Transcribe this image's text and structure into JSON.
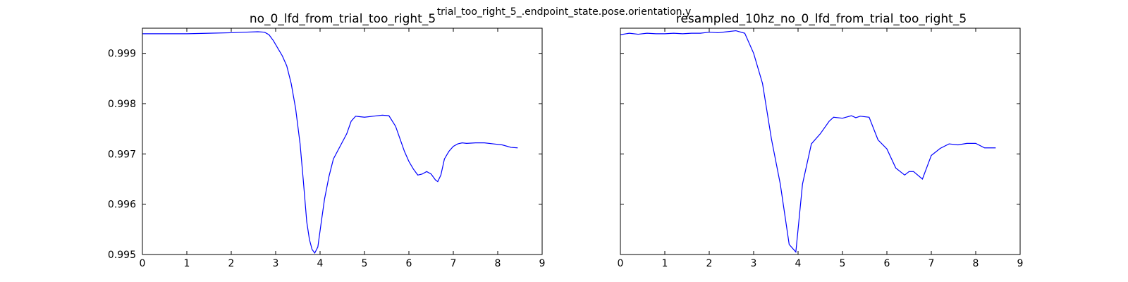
{
  "figure": {
    "suptitle": "trial_too_right_5_.endpoint_state.pose.orientation.y"
  },
  "chart_data": [
    {
      "type": "line",
      "title": "no_0_lfd_from_trial_too_right_5",
      "xlabel": "",
      "ylabel": "",
      "xlim": [
        0,
        9
      ],
      "ylim": [
        0.995,
        0.9995
      ],
      "xticks": [
        0,
        1,
        2,
        3,
        4,
        5,
        6,
        7,
        8,
        9
      ],
      "yticks": [
        0.995,
        0.996,
        0.997,
        0.998,
        0.999
      ],
      "ytick_labels": [
        "0.995",
        "0.996",
        "0.997",
        "0.998",
        "0.999"
      ],
      "show_y_tick_labels": true,
      "grid": false,
      "series": [
        {
          "color": "#0000ff",
          "x": [
            0,
            0.5,
            1.0,
            1.5,
            2.0,
            2.3,
            2.6,
            2.75,
            2.85,
            2.95,
            3.05,
            3.15,
            3.25,
            3.35,
            3.45,
            3.55,
            3.62,
            3.7,
            3.76,
            3.82,
            3.88,
            3.95,
            4.02,
            4.1,
            4.2,
            4.3,
            4.45,
            4.6,
            4.7,
            4.8,
            5.0,
            5.2,
            5.4,
            5.55,
            5.7,
            5.8,
            5.9,
            6.0,
            6.1,
            6.2,
            6.3,
            6.4,
            6.5,
            6.6,
            6.65,
            6.72,
            6.8,
            6.9,
            7.0,
            7.1,
            7.2,
            7.3,
            7.5,
            7.7,
            7.9,
            8.1,
            8.3,
            8.45
          ],
          "y": [
            0.99939,
            0.99939,
            0.99939,
            0.9994,
            0.99941,
            0.99942,
            0.99943,
            0.99942,
            0.99937,
            0.99925,
            0.9991,
            0.99895,
            0.99875,
            0.9984,
            0.9979,
            0.9972,
            0.9965,
            0.99565,
            0.9953,
            0.9951,
            0.99503,
            0.99515,
            0.9956,
            0.9961,
            0.99655,
            0.9969,
            0.99715,
            0.9974,
            0.99765,
            0.99775,
            0.99773,
            0.99775,
            0.99777,
            0.99776,
            0.99755,
            0.9973,
            0.99705,
            0.99685,
            0.9967,
            0.99658,
            0.9966,
            0.99665,
            0.9966,
            0.99648,
            0.99645,
            0.99658,
            0.9969,
            0.99705,
            0.99715,
            0.9972,
            0.99722,
            0.99721,
            0.99722,
            0.99722,
            0.9972,
            0.99718,
            0.99713,
            0.99712
          ]
        }
      ]
    },
    {
      "type": "line",
      "title": "resampled_10hz_no_0_lfd_from_trial_too_right_5",
      "xlabel": "",
      "ylabel": "",
      "xlim": [
        0,
        9
      ],
      "ylim": [
        0.995,
        0.9995
      ],
      "xticks": [
        0,
        1,
        2,
        3,
        4,
        5,
        6,
        7,
        8,
        9
      ],
      "yticks": [
        0.995,
        0.996,
        0.997,
        0.998,
        0.999
      ],
      "ytick_labels": [
        "0.995",
        "0.996",
        "0.997",
        "0.998",
        "0.999"
      ],
      "show_y_tick_labels": false,
      "grid": false,
      "series": [
        {
          "color": "#0000ff",
          "x": [
            0,
            0.2,
            0.4,
            0.6,
            0.8,
            1.0,
            1.2,
            1.4,
            1.6,
            1.8,
            2.0,
            2.2,
            2.4,
            2.6,
            2.8,
            3.0,
            3.2,
            3.4,
            3.6,
            3.8,
            3.95,
            4.1,
            4.3,
            4.5,
            4.7,
            4.8,
            5.0,
            5.2,
            5.3,
            5.4,
            5.6,
            5.8,
            6.0,
            6.2,
            6.4,
            6.5,
            6.6,
            6.8,
            7.0,
            7.2,
            7.4,
            7.6,
            7.8,
            8.0,
            8.2,
            8.45
          ],
          "y": [
            0.99937,
            0.9994,
            0.99938,
            0.9994,
            0.99939,
            0.99939,
            0.9994,
            0.99939,
            0.9994,
            0.9994,
            0.99942,
            0.99941,
            0.99943,
            0.99945,
            0.9994,
            0.999,
            0.9984,
            0.9973,
            0.9964,
            0.9952,
            0.99505,
            0.9964,
            0.9972,
            0.9974,
            0.99765,
            0.99773,
            0.99771,
            0.99776,
            0.99772,
            0.99775,
            0.99773,
            0.99728,
            0.9971,
            0.99672,
            0.99658,
            0.99665,
            0.99665,
            0.9965,
            0.99697,
            0.99711,
            0.9972,
            0.99718,
            0.99721,
            0.99721,
            0.99712,
            0.99712
          ]
        }
      ]
    }
  ]
}
